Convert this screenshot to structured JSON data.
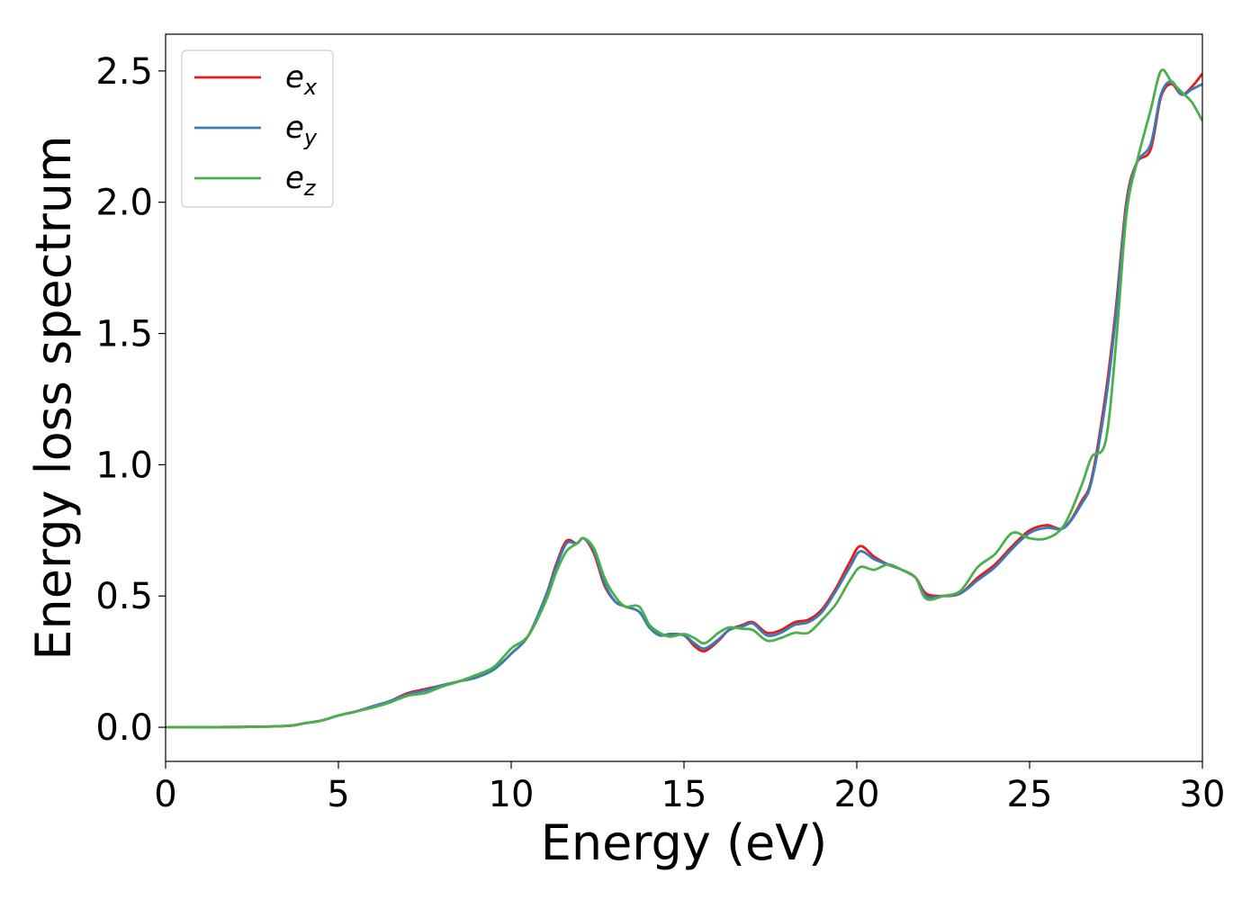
{
  "chart_data": {
    "type": "line",
    "title": "",
    "xlabel": "Energy (eV)",
    "ylabel": "Energy loss spectrum",
    "xlim": [
      0,
      30
    ],
    "ylim": [
      -0.13,
      2.64
    ],
    "xticks": [
      0,
      5,
      10,
      15,
      20,
      25,
      30
    ],
    "xtick_labels": [
      "0",
      "5",
      "10",
      "15",
      "20",
      "25",
      "30"
    ],
    "yticks": [
      0.0,
      0.5,
      1.0,
      1.5,
      2.0,
      2.5
    ],
    "ytick_labels": [
      "0.0",
      "0.5",
      "1.0",
      "1.5",
      "2.0",
      "2.5"
    ],
    "grid": false,
    "legend_position": "top-left",
    "series": [
      {
        "name": "e_x",
        "legend_base": "e",
        "legend_sub": "x",
        "color": "#e41a1c",
        "x": [
          0,
          2,
          3.5,
          4,
          4.5,
          5,
          5.5,
          6,
          6.5,
          7,
          7.5,
          8,
          8.5,
          9,
          9.5,
          10,
          10.5,
          11,
          11.3,
          11.6,
          11.9,
          12.1,
          12.4,
          12.7,
          13,
          13.3,
          13.7,
          14,
          14.3,
          14.6,
          15,
          15.3,
          15.6,
          16,
          16.3,
          16.7,
          17,
          17.4,
          17.8,
          18.2,
          18.6,
          19,
          19.4,
          19.8,
          20.1,
          20.5,
          20.9,
          21.3,
          21.7,
          22,
          22.5,
          23,
          23.5,
          24,
          24.5,
          25,
          25.5,
          26,
          26.5,
          26.8,
          27.2,
          27.5,
          27.8,
          28.1,
          28.5,
          28.8,
          29.1,
          29.4,
          29.7,
          30
        ],
        "y": [
          0.0,
          0.001,
          0.005,
          0.015,
          0.025,
          0.045,
          0.06,
          0.08,
          0.1,
          0.13,
          0.145,
          0.16,
          0.175,
          0.19,
          0.22,
          0.28,
          0.35,
          0.5,
          0.62,
          0.71,
          0.7,
          0.72,
          0.66,
          0.54,
          0.48,
          0.46,
          0.44,
          0.38,
          0.35,
          0.355,
          0.35,
          0.31,
          0.29,
          0.33,
          0.37,
          0.39,
          0.4,
          0.36,
          0.37,
          0.4,
          0.41,
          0.45,
          0.53,
          0.63,
          0.69,
          0.65,
          0.62,
          0.6,
          0.57,
          0.51,
          0.5,
          0.51,
          0.57,
          0.62,
          0.69,
          0.75,
          0.77,
          0.76,
          0.86,
          0.95,
          1.27,
          1.6,
          2.0,
          2.15,
          2.2,
          2.4,
          2.45,
          2.41,
          2.44,
          2.49
        ]
      },
      {
        "name": "e_y",
        "legend_base": "e",
        "legend_sub": "y",
        "color": "#377eb8",
        "x": [
          0,
          2,
          3.5,
          4,
          4.5,
          5,
          5.5,
          6,
          6.5,
          7,
          7.5,
          8,
          8.5,
          9,
          9.5,
          10,
          10.5,
          11,
          11.3,
          11.6,
          11.9,
          12.1,
          12.4,
          12.7,
          13,
          13.3,
          13.7,
          14,
          14.3,
          14.6,
          15,
          15.3,
          15.6,
          16,
          16.3,
          16.7,
          17,
          17.4,
          17.8,
          18.2,
          18.6,
          19,
          19.4,
          19.8,
          20.1,
          20.5,
          20.9,
          21.3,
          21.7,
          22,
          22.5,
          23,
          23.5,
          24,
          24.5,
          25,
          25.5,
          26,
          26.5,
          26.8,
          27.2,
          27.5,
          27.8,
          28.1,
          28.5,
          28.8,
          29.1,
          29.4,
          29.7,
          30
        ],
        "y": [
          0.0,
          0.001,
          0.005,
          0.015,
          0.025,
          0.045,
          0.06,
          0.08,
          0.1,
          0.125,
          0.14,
          0.16,
          0.175,
          0.19,
          0.22,
          0.28,
          0.35,
          0.5,
          0.61,
          0.7,
          0.7,
          0.72,
          0.67,
          0.55,
          0.48,
          0.46,
          0.44,
          0.38,
          0.35,
          0.355,
          0.35,
          0.32,
          0.3,
          0.335,
          0.37,
          0.385,
          0.395,
          0.35,
          0.36,
          0.39,
          0.4,
          0.44,
          0.52,
          0.61,
          0.67,
          0.64,
          0.62,
          0.6,
          0.57,
          0.5,
          0.5,
          0.51,
          0.56,
          0.61,
          0.68,
          0.74,
          0.76,
          0.76,
          0.85,
          0.94,
          1.24,
          1.57,
          1.98,
          2.15,
          2.22,
          2.41,
          2.46,
          2.41,
          2.43,
          2.45
        ]
      },
      {
        "name": "e_z",
        "legend_base": "e",
        "legend_sub": "z",
        "color": "#4daf4a",
        "x": [
          0,
          2,
          3.5,
          4,
          4.5,
          5,
          5.5,
          6,
          6.5,
          7,
          7.5,
          8,
          8.5,
          9,
          9.5,
          10,
          10.5,
          11,
          11.3,
          11.6,
          11.9,
          12.1,
          12.4,
          12.7,
          13,
          13.3,
          13.7,
          14,
          14.3,
          14.6,
          15,
          15.3,
          15.6,
          16,
          16.3,
          16.7,
          17,
          17.4,
          17.8,
          18.2,
          18.6,
          19,
          19.4,
          19.8,
          20.1,
          20.5,
          20.9,
          21.3,
          21.7,
          22,
          22.5,
          23,
          23.5,
          24,
          24.5,
          25,
          25.5,
          26,
          26.5,
          26.8,
          27.2,
          27.5,
          27.8,
          28.1,
          28.5,
          28.8,
          29.1,
          29.4,
          29.7,
          30
        ],
        "y": [
          0.0,
          0.001,
          0.005,
          0.015,
          0.025,
          0.045,
          0.06,
          0.075,
          0.095,
          0.12,
          0.13,
          0.155,
          0.175,
          0.2,
          0.23,
          0.3,
          0.35,
          0.48,
          0.59,
          0.67,
          0.7,
          0.72,
          0.68,
          0.57,
          0.5,
          0.46,
          0.46,
          0.39,
          0.36,
          0.345,
          0.355,
          0.34,
          0.32,
          0.36,
          0.38,
          0.375,
          0.37,
          0.33,
          0.34,
          0.36,
          0.36,
          0.41,
          0.47,
          0.56,
          0.61,
          0.6,
          0.62,
          0.6,
          0.57,
          0.49,
          0.5,
          0.52,
          0.61,
          0.66,
          0.74,
          0.72,
          0.72,
          0.77,
          0.92,
          1.03,
          1.09,
          1.46,
          1.95,
          2.15,
          2.35,
          2.5,
          2.46,
          2.42,
          2.38,
          2.31
        ]
      }
    ]
  }
}
